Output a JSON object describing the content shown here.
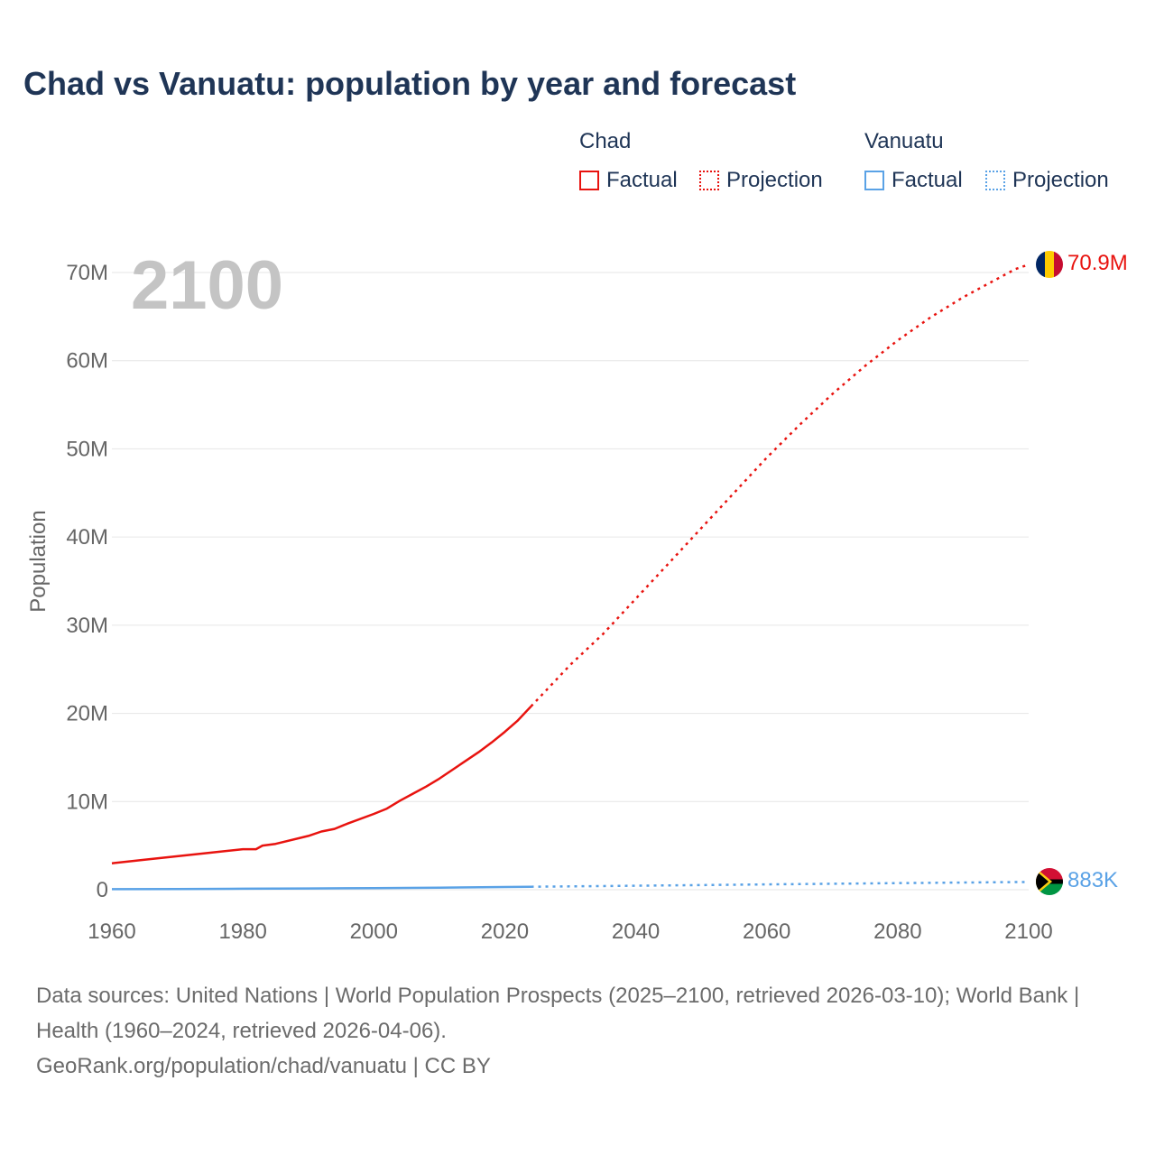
{
  "title": "Chad vs Vanuatu: population by year and forecast",
  "legend": {
    "groups": [
      {
        "name": "Chad",
        "color": "#e8130f",
        "items": [
          {
            "label": "Factual",
            "style": "solid"
          },
          {
            "label": "Projection",
            "style": "dotted"
          }
        ]
      },
      {
        "name": "Vanuatu",
        "color": "#5aa2e6",
        "items": [
          {
            "label": "Factual",
            "style": "solid"
          },
          {
            "label": "Projection",
            "style": "dotted"
          }
        ]
      }
    ]
  },
  "footer": {
    "sources": "Data sources: United Nations | World Population Prospects (2025–2100, retrieved 2026-03-10); World Bank | Health (1960–2024, retrieved 2026-04-06).",
    "credit": "GeoRank.org/population/chad/vanuatu | CC BY"
  },
  "chart_data": {
    "type": "line",
    "year_overlay": "2100",
    "ylabel": "Population",
    "xlim": [
      1960,
      2100
    ],
    "ylim": [
      0,
      70000000
    ],
    "x_ticks": [
      {
        "value": 1960,
        "label": "1960"
      },
      {
        "value": 1980,
        "label": "1980"
      },
      {
        "value": 2000,
        "label": "2000"
      },
      {
        "value": 2020,
        "label": "2020"
      },
      {
        "value": 2040,
        "label": "2040"
      },
      {
        "value": 2060,
        "label": "2060"
      },
      {
        "value": 2080,
        "label": "2080"
      },
      {
        "value": 2100,
        "label": "2100"
      }
    ],
    "y_ticks": [
      {
        "value": 0,
        "label": "0"
      },
      {
        "value": 10000000,
        "label": "10M"
      },
      {
        "value": 20000000,
        "label": "20M"
      },
      {
        "value": 30000000,
        "label": "30M"
      },
      {
        "value": 40000000,
        "label": "40M"
      },
      {
        "value": 50000000,
        "label": "50M"
      },
      {
        "value": 60000000,
        "label": "60M"
      },
      {
        "value": 70000000,
        "label": "70M"
      }
    ],
    "series": [
      {
        "name": "Chad",
        "color": "#e8130f",
        "end_label": "70.9M",
        "factual": {
          "x": [
            1960,
            1965,
            1970,
            1975,
            1980,
            1982,
            1983,
            1985,
            1990,
            1992,
            1994,
            1996,
            2000,
            2002,
            2004,
            2006,
            2008,
            2010,
            2012,
            2014,
            2016,
            2018,
            2020,
            2022,
            2024
          ],
          "y": [
            3000000,
            3400000,
            3800000,
            4200000,
            4600000,
            4600000,
            5000000,
            5200000,
            6100000,
            6600000,
            6900000,
            7500000,
            8600000,
            9200000,
            10100000,
            10900000,
            11700000,
            12600000,
            13600000,
            14600000,
            15600000,
            16700000,
            17900000,
            19200000,
            20800000
          ]
        },
        "projection": {
          "x": [
            2024,
            2030,
            2035,
            2040,
            2045,
            2050,
            2055,
            2060,
            2065,
            2070,
            2075,
            2080,
            2085,
            2090,
            2095,
            2098,
            2100
          ],
          "y": [
            20800000,
            25500000,
            29000000,
            33000000,
            37000000,
            41000000,
            45000000,
            49000000,
            52700000,
            56200000,
            59400000,
            62300000,
            64900000,
            67200000,
            69200000,
            70400000,
            70900000
          ]
        }
      },
      {
        "name": "Vanuatu",
        "color": "#5aa2e6",
        "end_label": "883K",
        "factual": {
          "x": [
            1960,
            1970,
            1980,
            1990,
            2000,
            2010,
            2020,
            2024
          ],
          "y": [
            64000,
            86000,
            117000,
            147000,
            185000,
            237000,
            307000,
            335000
          ]
        },
        "projection": {
          "x": [
            2024,
            2040,
            2060,
            2080,
            2100
          ],
          "y": [
            335000,
            450000,
            600000,
            750000,
            883000
          ]
        }
      }
    ]
  }
}
